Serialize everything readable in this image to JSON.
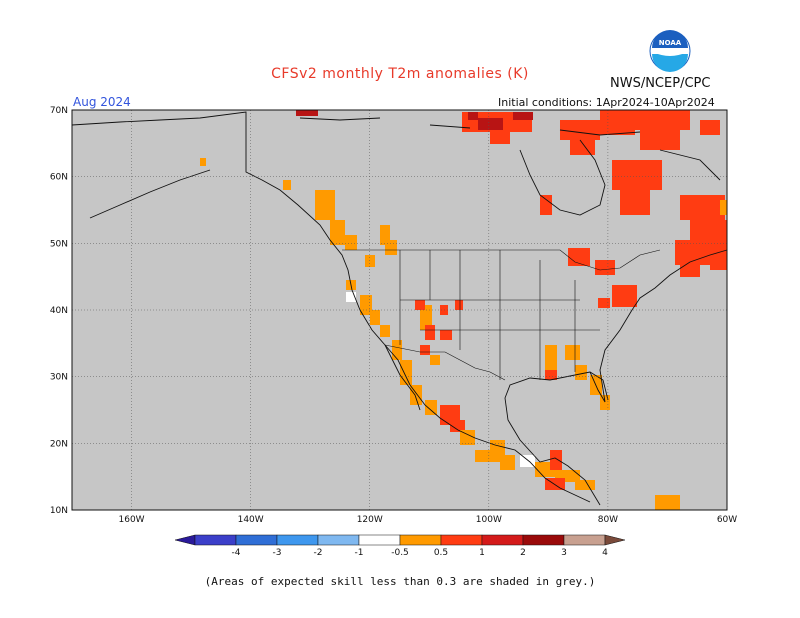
{
  "header": {
    "title": "CFSv2 monthly T2m anomalies (K)",
    "agency": "NWS/NCEP/CPC",
    "month": "Aug 2024",
    "initial_conditions": "Initial conditions: 1Apr2024-10Apr2024",
    "logo_text": "NOAA"
  },
  "axes": {
    "lat_labels": [
      "70N",
      "60N",
      "50N",
      "40N",
      "30N",
      "20N",
      "10N"
    ],
    "lon_labels": [
      "160W",
      "140W",
      "120W",
      "100W",
      "80W",
      "60W"
    ],
    "lat_range": [
      10,
      70
    ],
    "lon_range": [
      -170,
      -60
    ],
    "grid": "dotted"
  },
  "colorbar": {
    "labels": [
      "-4",
      "-3",
      "-2",
      "-1",
      "-0.5",
      "0.5",
      "1",
      "2",
      "3",
      "4"
    ],
    "bins": [
      {
        "color": "#2a1a9a"
      },
      {
        "color": "#3b3fc9"
      },
      {
        "color": "#2f6ed6"
      },
      {
        "color": "#3e97ee"
      },
      {
        "color": "#7fb8f0"
      },
      {
        "color": "#ffffff"
      },
      {
        "color": "#ff9a00"
      },
      {
        "color": "#ff3c12"
      },
      {
        "color": "#d41a1a"
      },
      {
        "color": "#9a0a0a"
      },
      {
        "color": "#c8a090"
      },
      {
        "color": "#7a4a3a"
      }
    ]
  },
  "map": {
    "background_color": "#c6c6c6",
    "colors": {
      "orange": "#ff9a00",
      "red": "#ff3c12",
      "darkred": "#b81414",
      "white": "#ffffff"
    }
  },
  "footnote": "(Areas of expected skill less than 0.3 are shaded in grey.)"
}
